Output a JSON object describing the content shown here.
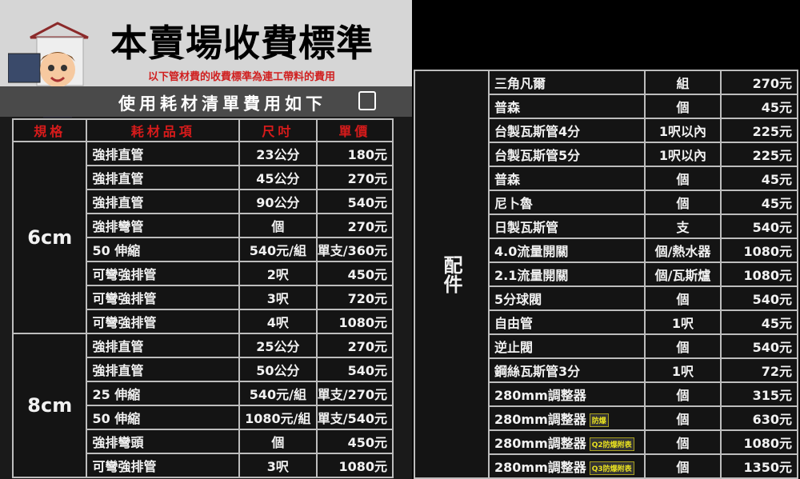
{
  "header": {
    "title": "本賣場收費標準",
    "subtitle": "以下管材費的收費標準為連工帶料的費用",
    "band": "使用耗材清單費用如下"
  },
  "left_table": {
    "columns": [
      "規格",
      "耗材品項",
      "尺吋",
      "單價"
    ],
    "groups": [
      {
        "spec": "6cm",
        "rows": [
          {
            "item": "強排直管",
            "size": "23公分",
            "price": "180元"
          },
          {
            "item": "強排直管",
            "size": "45公分",
            "price": "270元"
          },
          {
            "item": "強排直管",
            "size": "90公分",
            "price": "540元"
          },
          {
            "item": "強排彎管",
            "size": "個",
            "price": "270元"
          },
          {
            "item": "50 伸縮",
            "size": "540元/組",
            "price": "單支/360元"
          },
          {
            "item": "可彎強排管",
            "size": "2呎",
            "price": "450元"
          },
          {
            "item": "可彎強排管",
            "size": "3呎",
            "price": "720元"
          },
          {
            "item": "可彎強排管",
            "size": "4呎",
            "price": "1080元"
          }
        ]
      },
      {
        "spec": "8cm",
        "rows": [
          {
            "item": "強排直管",
            "size": "25公分",
            "price": "270元"
          },
          {
            "item": "強排直管",
            "size": "50公分",
            "price": "540元"
          },
          {
            "item": "25 伸縮",
            "size": "540元/組",
            "price": "單支/270元"
          },
          {
            "item": "50 伸縮",
            "size": "1080元/組",
            "price": "單支/540元"
          },
          {
            "item": "強排彎頭",
            "size": "個",
            "price": "450元"
          },
          {
            "item": "可彎強排管",
            "size": "3呎",
            "price": "1080元"
          }
        ]
      }
    ]
  },
  "right_table": {
    "spec": "配件",
    "rows": [
      {
        "item": "三角凡爾",
        "size": "組",
        "price": "270元"
      },
      {
        "item": "普森",
        "size": "個",
        "price": "45元"
      },
      {
        "item": "台製瓦斯管4分",
        "size": "1呎以內",
        "price": "225元"
      },
      {
        "item": "台製瓦斯管5分",
        "size": "1呎以內",
        "price": "225元"
      },
      {
        "item": "普森",
        "size": "個",
        "price": "45元"
      },
      {
        "item": "尼卜魯",
        "size": "個",
        "price": "45元"
      },
      {
        "item": "日製瓦斯管",
        "size": "支",
        "price": "540元"
      },
      {
        "item": "4.0流量開關",
        "size": "個/熱水器",
        "price": "1080元"
      },
      {
        "item": "2.1流量開關",
        "size": "個/瓦斯爐",
        "price": "1080元"
      },
      {
        "item": "5分球閥",
        "size": "個",
        "price": "540元"
      },
      {
        "item": "自由管",
        "size": "1呎",
        "price": "45元"
      },
      {
        "item": "逆止閥",
        "size": "個",
        "price": "540元"
      },
      {
        "item": "鋼絲瓦斯管3分",
        "size": "1呎",
        "price": "72元"
      },
      {
        "item": "280mm調整器",
        "size": "個",
        "price": "315元"
      },
      {
        "item": "280mm調整器",
        "badge": "防爆",
        "size": "個",
        "price": "630元"
      },
      {
        "item": "280mm調整器",
        "badge": "Q2防爆附表",
        "size": "個",
        "price": "1080元"
      },
      {
        "item": "280mm調整器",
        "badge": "Q3防爆附表",
        "size": "個",
        "price": "1350元"
      }
    ]
  }
}
